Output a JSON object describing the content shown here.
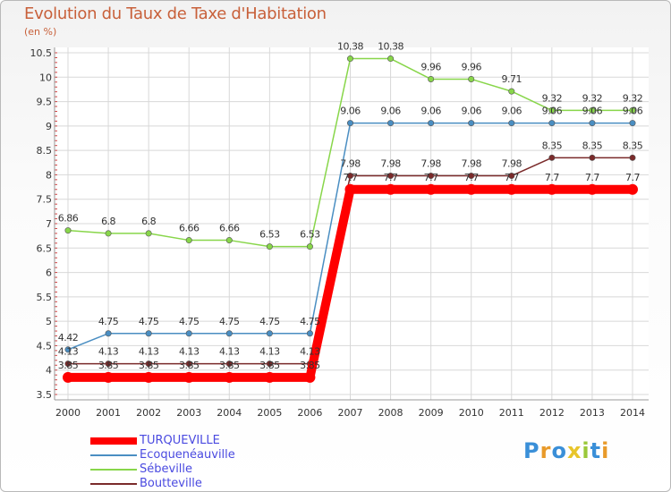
{
  "chart_data": {
    "type": "line",
    "title": "Evolution du Taux de Taxe d'Habitation",
    "subtitle": "(en %)",
    "x": [
      "2000",
      "2001",
      "2002",
      "2003",
      "2004",
      "2005",
      "2006",
      "2007",
      "2008",
      "2009",
      "2010",
      "2011",
      "2012",
      "2013",
      "2014"
    ],
    "yticks": [
      "3.5",
      "4",
      "4.5",
      "5",
      "5.5",
      "6",
      "6.5",
      "7",
      "7.5",
      "8",
      "8.5",
      "9",
      "9.5",
      "10",
      "10.5"
    ],
    "ylim": [
      3.5,
      10.5
    ],
    "grid": true,
    "series": [
      {
        "name": "TURQUEVILLE",
        "color": "#ff0000",
        "values": [
          3.85,
          3.85,
          3.85,
          3.85,
          3.85,
          3.85,
          3.85,
          7.7,
          7.7,
          7.7,
          7.7,
          7.7,
          7.7,
          7.7,
          7.7
        ],
        "labels": [
          "3.85",
          "3.85",
          "3.85",
          "3.85",
          "3.85",
          "3.85",
          "3.85",
          "7.7",
          "7.7",
          "7.7",
          "7.7",
          "7.7",
          "7.7",
          "7.7",
          "7.7"
        ]
      },
      {
        "name": "Ecoquenéauville",
        "color": "#4a8ec2",
        "values": [
          4.42,
          4.75,
          4.75,
          4.75,
          4.75,
          4.75,
          4.75,
          9.06,
          9.06,
          9.06,
          9.06,
          9.06,
          9.06,
          9.06,
          9.06
        ],
        "labels": [
          "4.42",
          "4.75",
          "4.75",
          "4.75",
          "4.75",
          "4.75",
          "4.75",
          "9.06",
          "9.06",
          "9.06",
          "9.06",
          "9.06",
          "9.06",
          "9.06",
          "9.06"
        ]
      },
      {
        "name": "Sébeville",
        "color": "#88d64a",
        "values": [
          6.86,
          6.8,
          6.8,
          6.66,
          6.66,
          6.53,
          6.53,
          10.38,
          10.38,
          9.96,
          9.96,
          9.71,
          9.32,
          9.32,
          9.32
        ],
        "labels": [
          "6.86",
          "6.8",
          "6.8",
          "6.66",
          "6.66",
          "6.53",
          "6.53",
          "10.38",
          "10.38",
          "9.96",
          "9.96",
          "9.71",
          "9.32",
          "9.32",
          "9.32"
        ]
      },
      {
        "name": "Boutteville",
        "color": "#7a2a2a",
        "values": [
          4.13,
          4.13,
          4.13,
          4.13,
          4.13,
          4.13,
          4.13,
          7.98,
          7.98,
          7.98,
          7.98,
          7.98,
          8.35,
          8.35,
          8.35
        ],
        "labels": [
          "4.13",
          "4.13",
          "4.13",
          "4.13",
          "4.13",
          "4.13",
          "4.13",
          "7.98",
          "7.98",
          "7.98",
          "7.98",
          "7.98",
          "8.35",
          "8.35",
          "8.35"
        ]
      }
    ],
    "legend": [
      "TURQUEVILLE",
      "Ecoquenéauville",
      "Sébeville",
      "Boutteville"
    ]
  },
  "logo": {
    "text": "Proxiti"
  }
}
